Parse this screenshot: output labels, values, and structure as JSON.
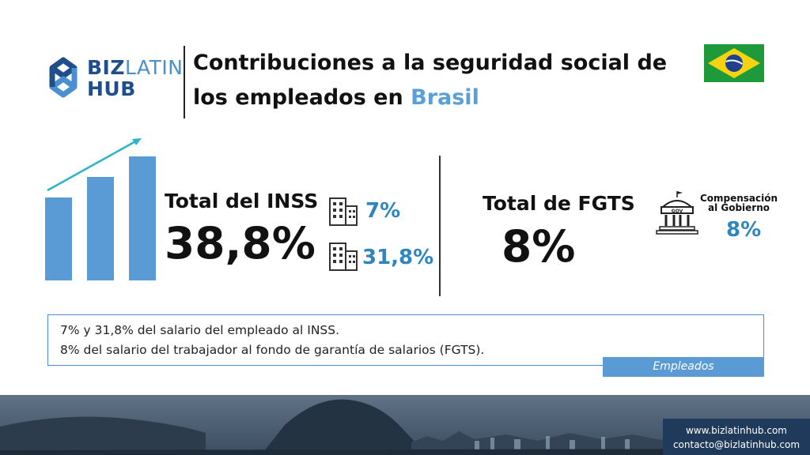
{
  "brand": {
    "logo_line1_a": "BIZ",
    "logo_line1_b": "LATIN",
    "logo_line2": "HUB",
    "colors": {
      "dark_blue": "#1f4e8c",
      "light_blue": "#4a8fd0"
    }
  },
  "title": {
    "main": "Contribuciones a la seguridad social de los empleados en",
    "accent": "Brasil",
    "accent_color": "#5aa0d8"
  },
  "flag": {
    "icon": "brazil-flag-icon"
  },
  "inss": {
    "label": "Total del INSS",
    "total": "38,8%",
    "items": [
      {
        "icon": "office-building-icon",
        "value": "7%"
      },
      {
        "icon": "office-building-icon",
        "value": "31,8%"
      }
    ]
  },
  "fgts": {
    "label": "Total de FGTS",
    "total": "8%",
    "gov_label": "Compensación al Gobierno",
    "gov_value": "8%",
    "gov_icon": "government-building-icon"
  },
  "info": {
    "line1": "7% y 31,8% del salario del empleado al INSS.",
    "line2": "8% del salario del trabajador al fondo de garantía de salarios (FGTS).",
    "tag": "Empleados"
  },
  "contact": {
    "website": "www.bizlatinhub.com",
    "email": "contacto@bizlatinhub.com"
  },
  "accent_colors": {
    "value_blue": "#2e86c1",
    "bar_blue": "#5b9bd5",
    "arrow": "#2ab4c8"
  }
}
